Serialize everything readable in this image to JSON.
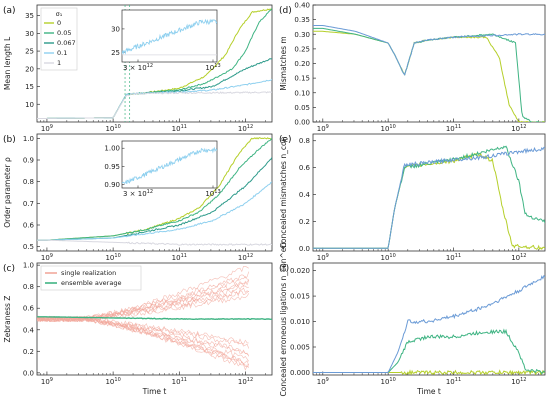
{
  "colors": {
    "s0": "#b5cf2a",
    "s005": "#3fb483",
    "s0067": "#2c9a8a",
    "s01": "#8fd0ef",
    "s1": "#d8d8e0",
    "blue": "#6b9bd6",
    "single": "#f2a89c",
    "ensemble": "#3fb483"
  },
  "x_tick_labels": [
    "10^9",
    "10^10",
    "10^11",
    "10^12"
  ],
  "x_axis_label": "Time  t",
  "chart_data": [
    {
      "panel": "(a)",
      "type": "line",
      "ylabel": "Mean length  L",
      "yticks": [
        "10",
        "15",
        "20",
        "25",
        "30",
        "35"
      ],
      "ylim": [
        5,
        38
      ],
      "xscale": "log",
      "legend": {
        "title": "σ₁",
        "placement": "top-left",
        "entries": [
          "0",
          "0.05",
          "0.067",
          "0.1",
          "1"
        ]
      },
      "series": [
        {
          "name": "0",
          "x": [
            9,
            10,
            10.2,
            10.35,
            10.6,
            11,
            11.4,
            11.7,
            11.9,
            12.1,
            12.4
          ],
          "y": [
            6,
            6.2,
            12.8,
            13,
            13.5,
            14.5,
            18,
            24,
            31,
            36,
            37
          ]
        },
        {
          "name": "0.05",
          "x": [
            9,
            10,
            10.2,
            10.35,
            10.6,
            11,
            11.4,
            11.8,
            12.0,
            12.2,
            12.4
          ],
          "y": [
            6,
            6.2,
            12.8,
            13,
            13.4,
            14,
            16,
            20,
            25,
            33,
            37
          ]
        },
        {
          "name": "0.067",
          "x": [
            9,
            10,
            10.2,
            10.35,
            10.6,
            11,
            11.5,
            12,
            12.4
          ],
          "y": [
            6,
            6.2,
            12.8,
            13,
            13.3,
            13.8,
            15,
            20,
            23
          ]
        },
        {
          "name": "0.1",
          "x": [
            9,
            10,
            10.2,
            10.35,
            10.6,
            11,
            11.5,
            12,
            12.4
          ],
          "y": [
            6,
            6.2,
            12.8,
            13,
            13.2,
            13.5,
            14,
            15.5,
            17
          ]
        },
        {
          "name": "1",
          "x": [
            9,
            10,
            10.2,
            10.35,
            11,
            12,
            12.4
          ],
          "y": [
            6,
            6.2,
            12.5,
            13,
            13.2,
            13.3,
            13.4
          ]
        }
      ],
      "inset": {
        "xtick_labels": [
          "3 × 10^12",
          "10^13"
        ],
        "yticks": [
          "25",
          "30"
        ],
        "ylim": [
          23,
          34
        ]
      }
    },
    {
      "panel": "(b)",
      "type": "line",
      "ylabel": "Order parameter  ρ",
      "yticks": [
        "0.5",
        "0.6",
        "0.7",
        "0.8",
        "0.9",
        "1.0"
      ],
      "ylim": [
        0.48,
        1.02
      ],
      "xscale": "log",
      "series": [
        {
          "name": "0",
          "x": [
            9,
            10,
            10.5,
            11,
            11.3,
            11.6,
            11.9,
            12.1,
            12.4
          ],
          "y": [
            0.53,
            0.55,
            0.58,
            0.63,
            0.68,
            0.78,
            0.93,
            1.0,
            1.0
          ]
        },
        {
          "name": "0.05",
          "x": [
            9,
            10,
            10.5,
            11,
            11.3,
            11.6,
            11.9,
            12.2,
            12.4
          ],
          "y": [
            0.53,
            0.55,
            0.58,
            0.62,
            0.66,
            0.74,
            0.86,
            0.95,
            1.0
          ]
        },
        {
          "name": "0.067",
          "x": [
            9,
            10,
            10.5,
            11,
            11.5,
            12,
            12.4
          ],
          "y": [
            0.53,
            0.54,
            0.57,
            0.6,
            0.66,
            0.78,
            0.91
          ]
        },
        {
          "name": "0.1",
          "x": [
            9,
            10,
            10.5,
            11,
            11.5,
            12,
            12.4
          ],
          "y": [
            0.53,
            0.54,
            0.56,
            0.58,
            0.62,
            0.7,
            0.8
          ]
        },
        {
          "name": "1",
          "x": [
            9,
            10,
            11,
            12,
            12.4
          ],
          "y": [
            0.53,
            0.52,
            0.51,
            0.51,
            0.51
          ]
        }
      ],
      "inset": {
        "xtick_labels": [
          "3 × 10^12",
          "10^13"
        ],
        "yticks": [
          "0.90",
          "0.95",
          "1.00"
        ],
        "ylim": [
          0.89,
          1.02
        ]
      }
    },
    {
      "panel": "(c)",
      "type": "line",
      "ylabel": "Zebraness  Z",
      "yticks": [
        "0.0",
        "0.2",
        "0.4",
        "0.6",
        "0.8",
        "1.0"
      ],
      "ylim": [
        -0.02,
        1.02
      ],
      "xscale": "log",
      "legend": {
        "placement": "top-left",
        "entries": [
          "single realization",
          "ensemble average"
        ]
      },
      "series": [
        {
          "name": "ensemble average",
          "x": [
            9,
            10,
            11,
            12,
            12.4
          ],
          "y": [
            0.52,
            0.51,
            0.5,
            0.5,
            0.5
          ]
        }
      ]
    },
    {
      "panel": "(d)",
      "type": "line",
      "ylabel": "Mismatches  m",
      "yticks": [
        "0.00",
        "0.05",
        "0.10",
        "0.15",
        "0.20",
        "0.25",
        "0.30",
        "0.35",
        "0.40"
      ],
      "ylim": [
        0,
        0.4
      ],
      "xscale": "log",
      "series": [
        {
          "name": "0",
          "x": [
            9,
            9.5,
            10,
            10.1,
            10.25,
            10.4,
            10.6,
            11,
            11.5,
            11.7,
            11.85,
            12,
            12.4
          ],
          "y": [
            0.31,
            0.3,
            0.27,
            0.23,
            0.16,
            0.27,
            0.28,
            0.29,
            0.29,
            0.22,
            0.06,
            0.0,
            0.0
          ]
        },
        {
          "name": "0.05",
          "x": [
            9,
            9.5,
            10,
            10.1,
            10.25,
            10.4,
            10.6,
            11,
            11.6,
            11.95,
            12.05,
            12.2,
            12.4
          ],
          "y": [
            0.32,
            0.3,
            0.27,
            0.23,
            0.16,
            0.27,
            0.28,
            0.29,
            0.3,
            0.27,
            0.02,
            0.0,
            0.0
          ]
        },
        {
          "name": "0.1",
          "x": [
            9,
            9.5,
            10,
            10.1,
            10.25,
            10.4,
            10.6,
            11,
            12,
            12.4
          ],
          "y": [
            0.33,
            0.31,
            0.27,
            0.23,
            0.16,
            0.27,
            0.28,
            0.29,
            0.3,
            0.3
          ]
        }
      ]
    },
    {
      "panel": "(e)",
      "type": "line",
      "ylabel": "Concealed mismatches  n_con",
      "yticks": [
        "0.0",
        "0.2",
        "0.4",
        "0.6",
        "0.8"
      ],
      "ylim": [
        -0.02,
        0.85
      ],
      "xscale": "log",
      "series": [
        {
          "name": "0",
          "x": [
            9,
            10,
            10.1,
            10.25,
            10.5,
            11,
            11.4,
            11.6,
            11.75,
            11.9,
            12.4
          ],
          "y": [
            0.0,
            0.0,
            0.3,
            0.6,
            0.62,
            0.65,
            0.7,
            0.65,
            0.3,
            0.02,
            0.0
          ]
        },
        {
          "name": "0.05",
          "x": [
            9,
            10,
            10.1,
            10.25,
            10.5,
            11,
            11.5,
            11.8,
            12.0,
            12.1,
            12.4
          ],
          "y": [
            0.0,
            0.0,
            0.3,
            0.6,
            0.62,
            0.66,
            0.72,
            0.76,
            0.5,
            0.25,
            0.2
          ]
        },
        {
          "name": "0.1",
          "x": [
            9,
            10,
            10.1,
            10.25,
            10.5,
            11,
            11.5,
            12,
            12.4
          ],
          "y": [
            0.0,
            0.0,
            0.3,
            0.62,
            0.63,
            0.66,
            0.68,
            0.72,
            0.74
          ]
        }
      ]
    },
    {
      "panel": "(f)",
      "type": "line",
      "ylabel": "Concealed erroneous ligations  n_con^err",
      "yticks": [
        "0.000",
        "0.005",
        "0.010",
        "0.015",
        "0.020"
      ],
      "ylim": [
        -0.0005,
        0.0215
      ],
      "xscale": "log",
      "series": [
        {
          "name": "0",
          "x": [
            9,
            12.4
          ],
          "y": [
            0.0,
            0.0
          ]
        },
        {
          "name": "0.05",
          "x": [
            9,
            10,
            10.15,
            10.3,
            10.6,
            11,
            11.5,
            11.8,
            12.0,
            12.1,
            12.4
          ],
          "y": [
            0.0,
            0.0,
            0.002,
            0.006,
            0.007,
            0.007,
            0.008,
            0.008,
            0.004,
            0.0005,
            0.0
          ]
        },
        {
          "name": "0.1",
          "x": [
            9,
            10,
            10.15,
            10.3,
            10.6,
            11,
            11.5,
            12,
            12.4
          ],
          "y": [
            0.0,
            0.0,
            0.004,
            0.01,
            0.01,
            0.011,
            0.013,
            0.016,
            0.019
          ]
        }
      ]
    }
  ]
}
